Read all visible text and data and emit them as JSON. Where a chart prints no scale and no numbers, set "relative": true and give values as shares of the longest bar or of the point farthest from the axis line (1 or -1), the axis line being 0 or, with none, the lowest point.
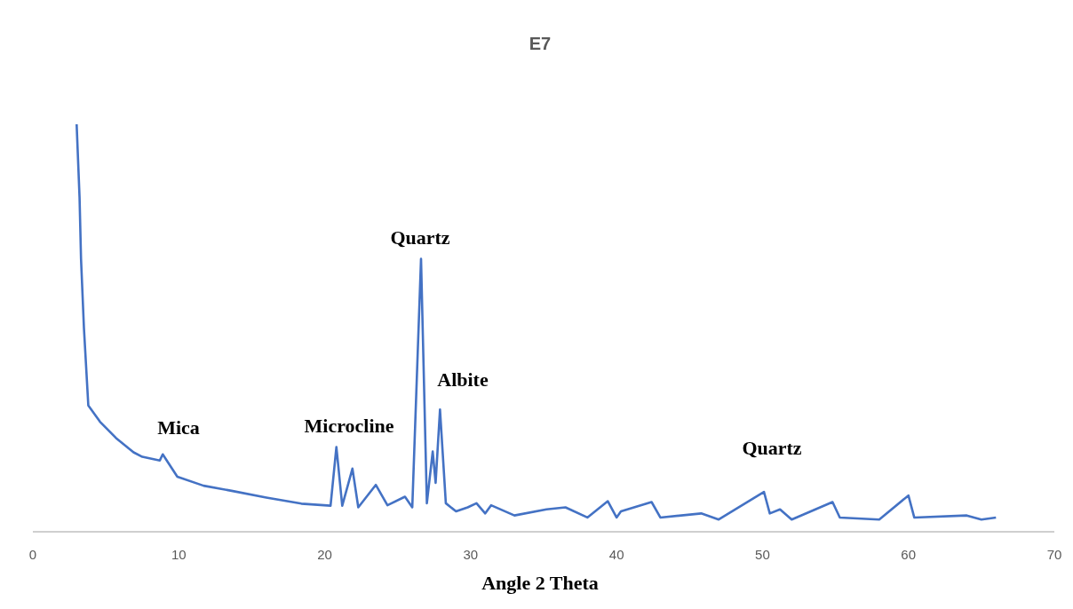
{
  "chart_data": {
    "type": "line",
    "title": "E7",
    "xlabel": "Angle 2 Theta",
    "relative": true,
    "xlim": [
      0,
      70
    ],
    "xticks": [
      0,
      10,
      20,
      30,
      40,
      50,
      60,
      70
    ],
    "series": [
      {
        "color": "#4472c4",
        "x": [
          3.0,
          3.2,
          3.3,
          3.5,
          3.8,
          4.6,
          5.7,
          6.9,
          7.5,
          8.7,
          8.9,
          9.9,
          11.7,
          13.7,
          16,
          18.4,
          20.4,
          20.8,
          21.2,
          21.9,
          22.3,
          23.5,
          23.9,
          24.3,
          25.5,
          26.0,
          26.6,
          27.0,
          27.4,
          27.6,
          27.9,
          28.3,
          29.0,
          29.8,
          30.4,
          31.0,
          31.4,
          33,
          35.2,
          36.5,
          38,
          39.4,
          40,
          40.3,
          42.4,
          43,
          45.8,
          47,
          50.1,
          50.5,
          51.2,
          52,
          54.8,
          55.3,
          58,
          60,
          60.4,
          64,
          65,
          66
        ],
        "values": [
          1.0,
          0.82,
          0.67,
          0.5,
          0.31,
          0.27,
          0.23,
          0.195,
          0.184,
          0.175,
          0.19,
          0.135,
          0.113,
          0.1,
          0.084,
          0.069,
          0.064,
          0.208,
          0.064,
          0.155,
          0.06,
          0.115,
          0.09,
          0.065,
          0.086,
          0.06,
          0.67,
          0.07,
          0.197,
          0.12,
          0.3,
          0.07,
          0.05,
          0.06,
          0.07,
          0.045,
          0.065,
          0.04,
          0.055,
          0.06,
          0.035,
          0.075,
          0.035,
          0.05,
          0.073,
          0.035,
          0.045,
          0.03,
          0.098,
          0.045,
          0.055,
          0.03,
          0.073,
          0.035,
          0.03,
          0.089,
          0.035,
          0.04,
          0.03,
          0.035
        ]
      }
    ],
    "annotations": [
      "Mica",
      "Microcline",
      "Quartz",
      "Albite",
      "Quartz"
    ]
  }
}
